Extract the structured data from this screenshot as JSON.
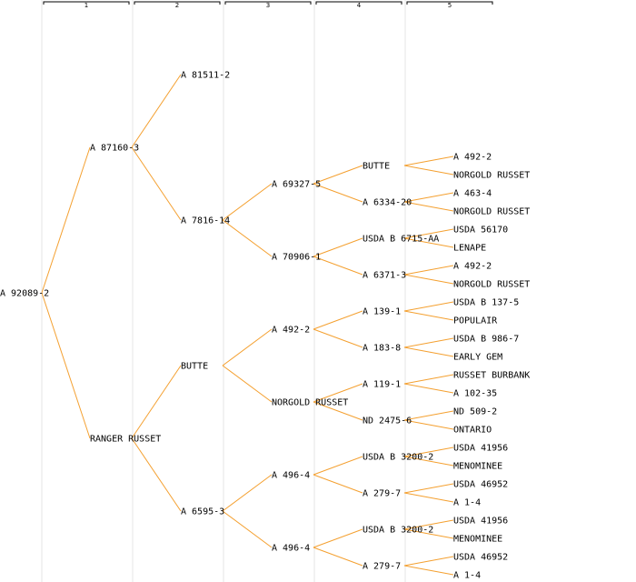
{
  "generations": [
    "1",
    "2",
    "3",
    "4",
    "5"
  ],
  "colors": {
    "edge": "#f4a030",
    "text": "#000000",
    "column_line": "#ededed"
  },
  "tree": {
    "label": "A 92089-2",
    "children": [
      {
        "label": "A 87160-3",
        "children": [
          {
            "label": "A 81511-2"
          },
          {
            "label": "A 7816-14",
            "children": [
              {
                "label": "A 69327-5",
                "children": [
                  {
                    "label": "BUTTE",
                    "children": [
                      {
                        "label": "A 492-2"
                      },
                      {
                        "label": "NORGOLD RUSSET"
                      }
                    ]
                  },
                  {
                    "label": "A 6334-20",
                    "children": [
                      {
                        "label": "A 463-4"
                      },
                      {
                        "label": "NORGOLD RUSSET"
                      }
                    ]
                  }
                ]
              },
              {
                "label": "A 70906-1",
                "children": [
                  {
                    "label": "USDA B 6715-AA",
                    "children": [
                      {
                        "label": "USDA 56170"
                      },
                      {
                        "label": "LENAPE"
                      }
                    ]
                  },
                  {
                    "label": "A 6371-3",
                    "children": [
                      {
                        "label": "A 492-2"
                      },
                      {
                        "label": "NORGOLD RUSSET"
                      }
                    ]
                  }
                ]
              }
            ]
          }
        ]
      },
      {
        "label": "RANGER RUSSET",
        "children": [
          {
            "label": "BUTTE",
            "children": [
              {
                "label": "A 492-2",
                "children": [
                  {
                    "label": "A 139-1",
                    "children": [
                      {
                        "label": "USDA B 137-5"
                      },
                      {
                        "label": "POPULAIR"
                      }
                    ]
                  },
                  {
                    "label": "A 183-8",
                    "children": [
                      {
                        "label": "USDA B 986-7"
                      },
                      {
                        "label": "EARLY GEM"
                      }
                    ]
                  }
                ]
              },
              {
                "label": "NORGOLD RUSSET",
                "children": [
                  {
                    "label": "A 119-1",
                    "children": [
                      {
                        "label": "RUSSET BURBANK"
                      },
                      {
                        "label": "A 102-35"
                      }
                    ]
                  },
                  {
                    "label": "ND 2475-6",
                    "children": [
                      {
                        "label": "ND 509-2"
                      },
                      {
                        "label": "ONTARIO"
                      }
                    ]
                  }
                ]
              }
            ]
          },
          {
            "label": "A 6595-3",
            "children": [
              {
                "label": "A 496-4",
                "children": [
                  {
                    "label": "USDA B 3200-2",
                    "children": [
                      {
                        "label": "USDA 41956"
                      },
                      {
                        "label": "MENOMINEE"
                      }
                    ]
                  },
                  {
                    "label": "A 279-7",
                    "children": [
                      {
                        "label": "USDA 46952"
                      },
                      {
                        "label": "A 1-4"
                      }
                    ]
                  }
                ]
              },
              {
                "label": "A 496-4",
                "children": [
                  {
                    "label": "USDA B 3200-2",
                    "children": [
                      {
                        "label": "USDA 41956"
                      },
                      {
                        "label": "MENOMINEE"
                      }
                    ]
                  },
                  {
                    "label": "A 279-7",
                    "children": [
                      {
                        "label": "USDA 46952"
                      },
                      {
                        "label": "A 1-4"
                      }
                    ]
                  }
                ]
              }
            ]
          }
        ]
      }
    ]
  }
}
